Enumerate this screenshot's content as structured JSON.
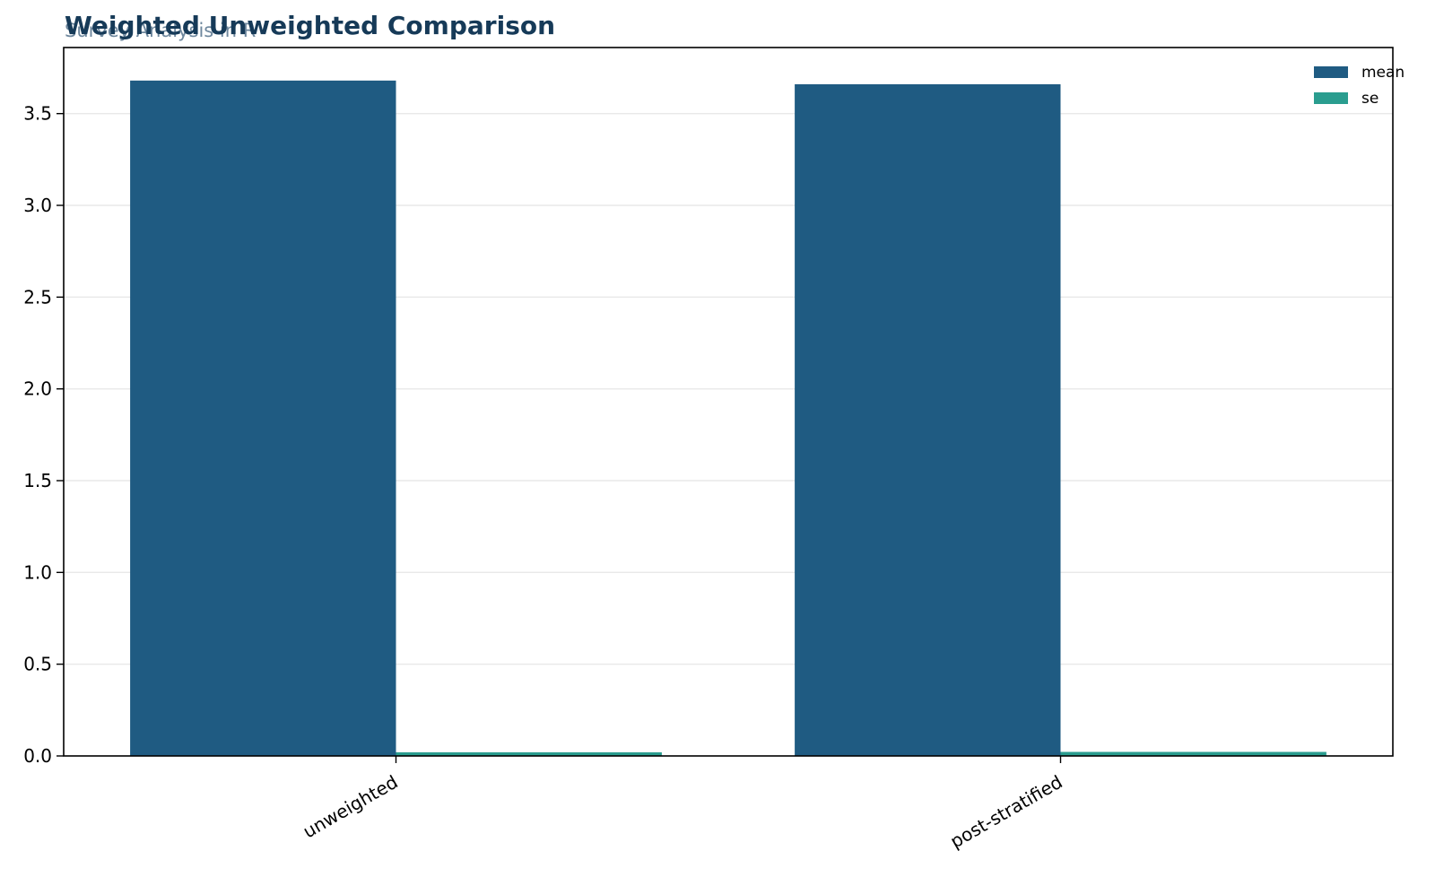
{
  "chart_data": {
    "type": "bar",
    "title": "Weighted Unweighted Comparison",
    "subtitle": "Survey Analysis in R",
    "xlabel": "",
    "ylabel": "",
    "categories": [
      "unweighted",
      "post-stratified"
    ],
    "series": [
      {
        "name": "mean",
        "values": [
          3.68,
          3.66
        ],
        "color": "#1f5b82"
      },
      {
        "name": "se",
        "values": [
          0.02,
          0.022
        ],
        "color": "#2a9d8f"
      }
    ],
    "ylim": [
      0,
      3.86
    ],
    "yticks": [
      "0.0",
      "0.5",
      "1.0",
      "1.5",
      "2.0",
      "2.5",
      "3.0",
      "3.5"
    ],
    "grid": "horizontal",
    "legend_position": "top-right"
  }
}
